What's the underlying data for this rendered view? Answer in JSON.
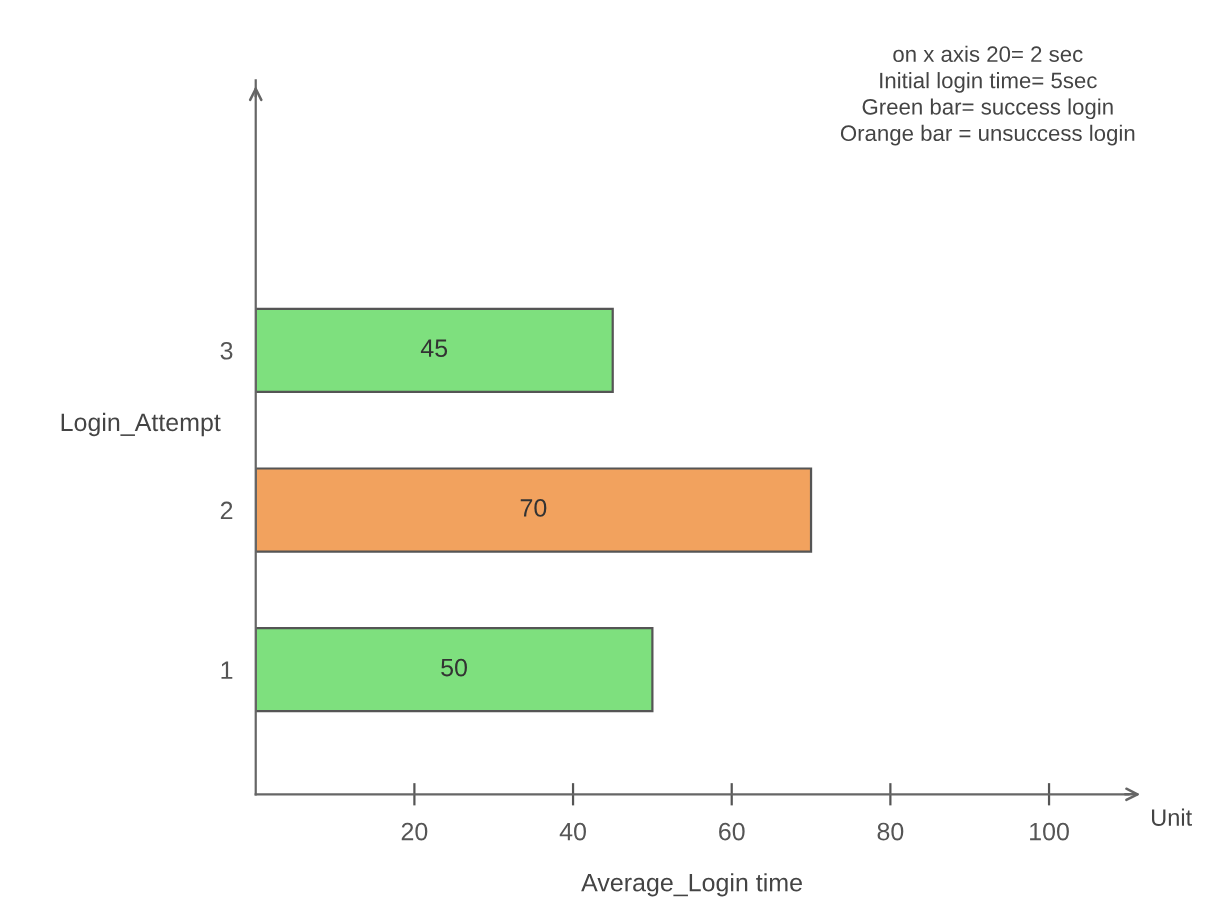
{
  "chart_data": {
    "type": "bar",
    "orientation": "horizontal",
    "categories": [
      "3",
      "2",
      "1"
    ],
    "values": [
      45,
      70,
      50
    ],
    "colors": [
      "#7ee07e",
      "#f2a25e",
      "#7ee07e"
    ],
    "xlabel": "Average_Login time",
    "ylabel": "Login_Attempt",
    "xlim": [
      0,
      110
    ],
    "xticks": [
      20,
      40,
      60,
      80,
      100
    ],
    "data_labels": true,
    "grid": false,
    "annotations": [
      "Unit",
      "on x axis 20= 2 sec",
      "Initial login time= 5sec",
      "Green bar= success login",
      "Orange bar = unsuccess login"
    ]
  }
}
